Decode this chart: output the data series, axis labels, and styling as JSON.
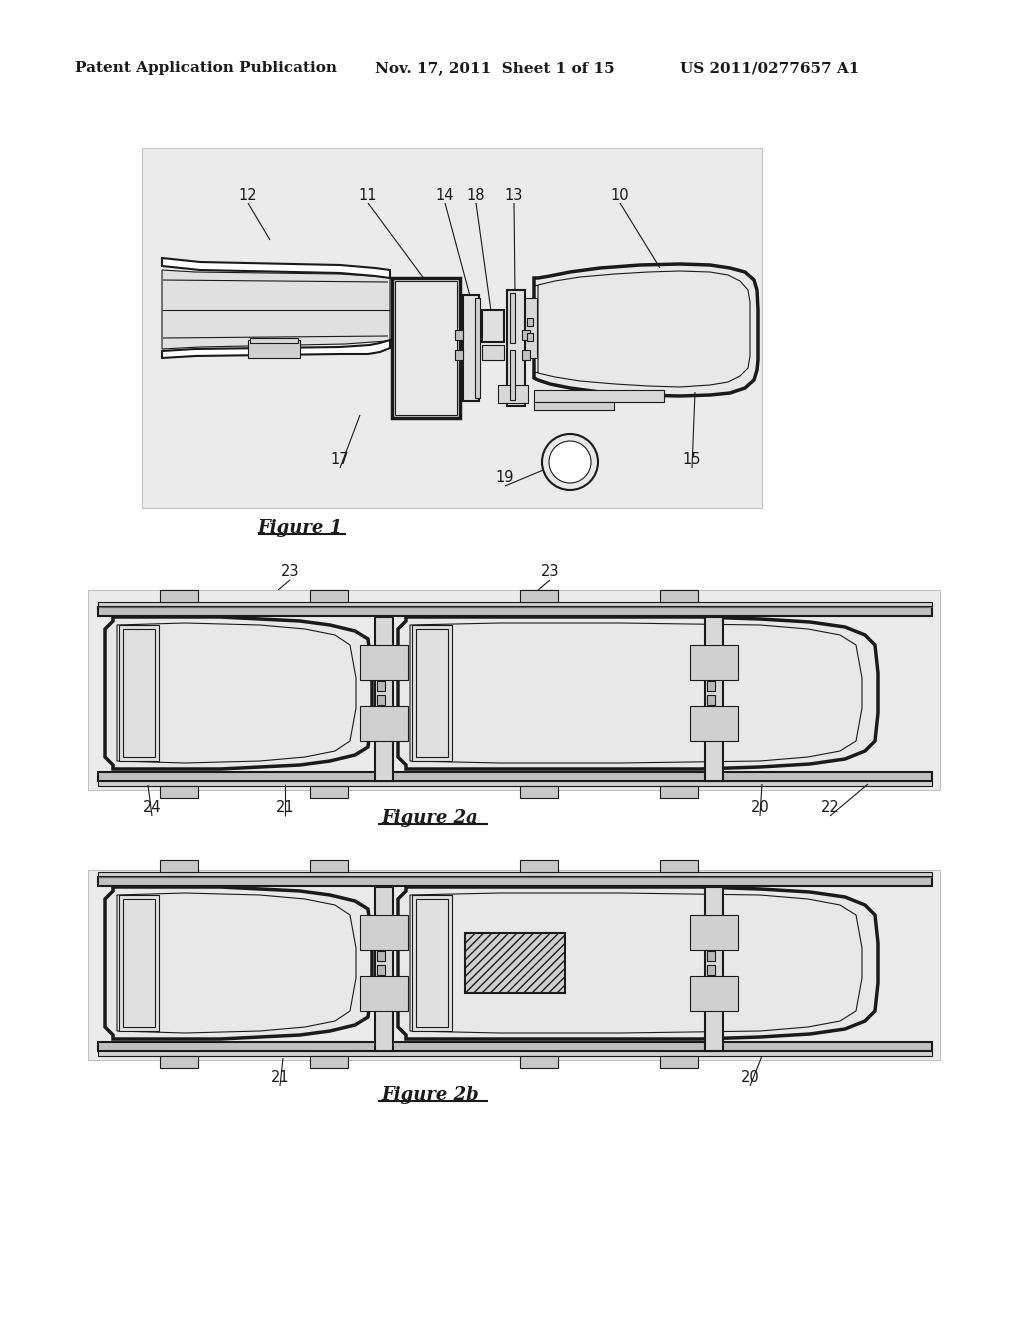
{
  "bg_color": "#ffffff",
  "header_text": "Patent Application Publication",
  "header_date": "Nov. 17, 2011  Sheet 1 of 15",
  "header_patent": "US 2011/0277657 A1",
  "fig1_title": "Figure 1",
  "fig2a_title": "Figure 2a",
  "fig2b_title": "Figure 2b",
  "line_color": "#1a1a1a",
  "label_fontsize": 10.5,
  "header_fontsize": 11,
  "fig_bg": "#ebebeb"
}
